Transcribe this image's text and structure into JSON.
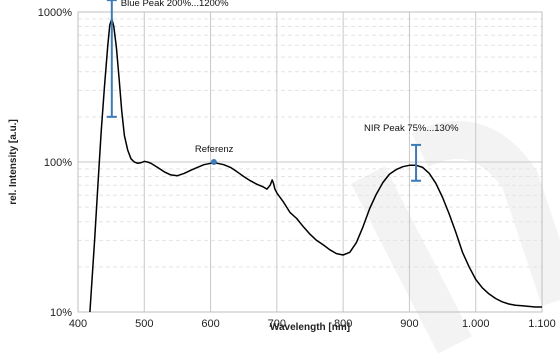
{
  "chart_data": {
    "type": "line",
    "xlabel": "Wavelength [nm]",
    "ylabel": "rel. Intensity [a.u.]",
    "x_scale": "linear",
    "y_scale": "log",
    "xlim": [
      400,
      1100
    ],
    "ylim": [
      10,
      1000
    ],
    "x_ticks": [
      400,
      500,
      600,
      700,
      800,
      900,
      1000,
      1100
    ],
    "x_tick_labels": [
      "400",
      "500",
      "600",
      "700",
      "800",
      "900",
      "1.000",
      "1.100"
    ],
    "y_ticks": [
      10,
      100,
      1000
    ],
    "y_tick_labels": [
      "10%",
      "100%",
      "1000%"
    ],
    "grid": true,
    "line_color": "#000000",
    "marker_color": "#3d7ab8",
    "series": [
      {
        "x": [
          418,
          425,
          430,
          435,
          440,
          445,
          448,
          451,
          454,
          458,
          462,
          466,
          470,
          475,
          480,
          485,
          490,
          495,
          500,
          505,
          510,
          520,
          530,
          540,
          550,
          560,
          570,
          580,
          590,
          600,
          610,
          620,
          630,
          640,
          650,
          660,
          670,
          680,
          685,
          690,
          693,
          695,
          697,
          700,
          710,
          720,
          730,
          740,
          750,
          760,
          770,
          780,
          790,
          800,
          810,
          820,
          830,
          840,
          850,
          860,
          870,
          880,
          890,
          900,
          910,
          920,
          930,
          940,
          950,
          960,
          970,
          980,
          990,
          1000,
          1010,
          1020,
          1030,
          1040,
          1050,
          1060,
          1070,
          1080,
          1090,
          1100
        ],
        "y": [
          10,
          30,
          70,
          160,
          320,
          600,
          820,
          900,
          800,
          580,
          360,
          220,
          150,
          120,
          105,
          100,
          98,
          99,
          101,
          100,
          98,
          92,
          86,
          82,
          81,
          84,
          88,
          92,
          96,
          98,
          98,
          96,
          92,
          86,
          80,
          75,
          71,
          68,
          66,
          70,
          76,
          72,
          66,
          62,
          54,
          46,
          42,
          37,
          33,
          30,
          28,
          26,
          24.5,
          24,
          25,
          29,
          37,
          49,
          61,
          73,
          83,
          89,
          93,
          95,
          95,
          92,
          84,
          72,
          58,
          45,
          34,
          25,
          20,
          16.5,
          14.5,
          13.2,
          12.3,
          11.7,
          11.3,
          11.1,
          11,
          10.9,
          10.8,
          10.8
        ]
      }
    ],
    "error_bars": [
      {
        "x": 451,
        "y_low": 200,
        "y_high": 1200,
        "label": "Blue Peak 200%...1200%"
      },
      {
        "x": 910,
        "y_low": 75,
        "y_high": 130,
        "label": "NIR Peak 75%...130%"
      }
    ],
    "points": [
      {
        "x": 605,
        "y": 100,
        "label": "Referenz"
      }
    ]
  }
}
